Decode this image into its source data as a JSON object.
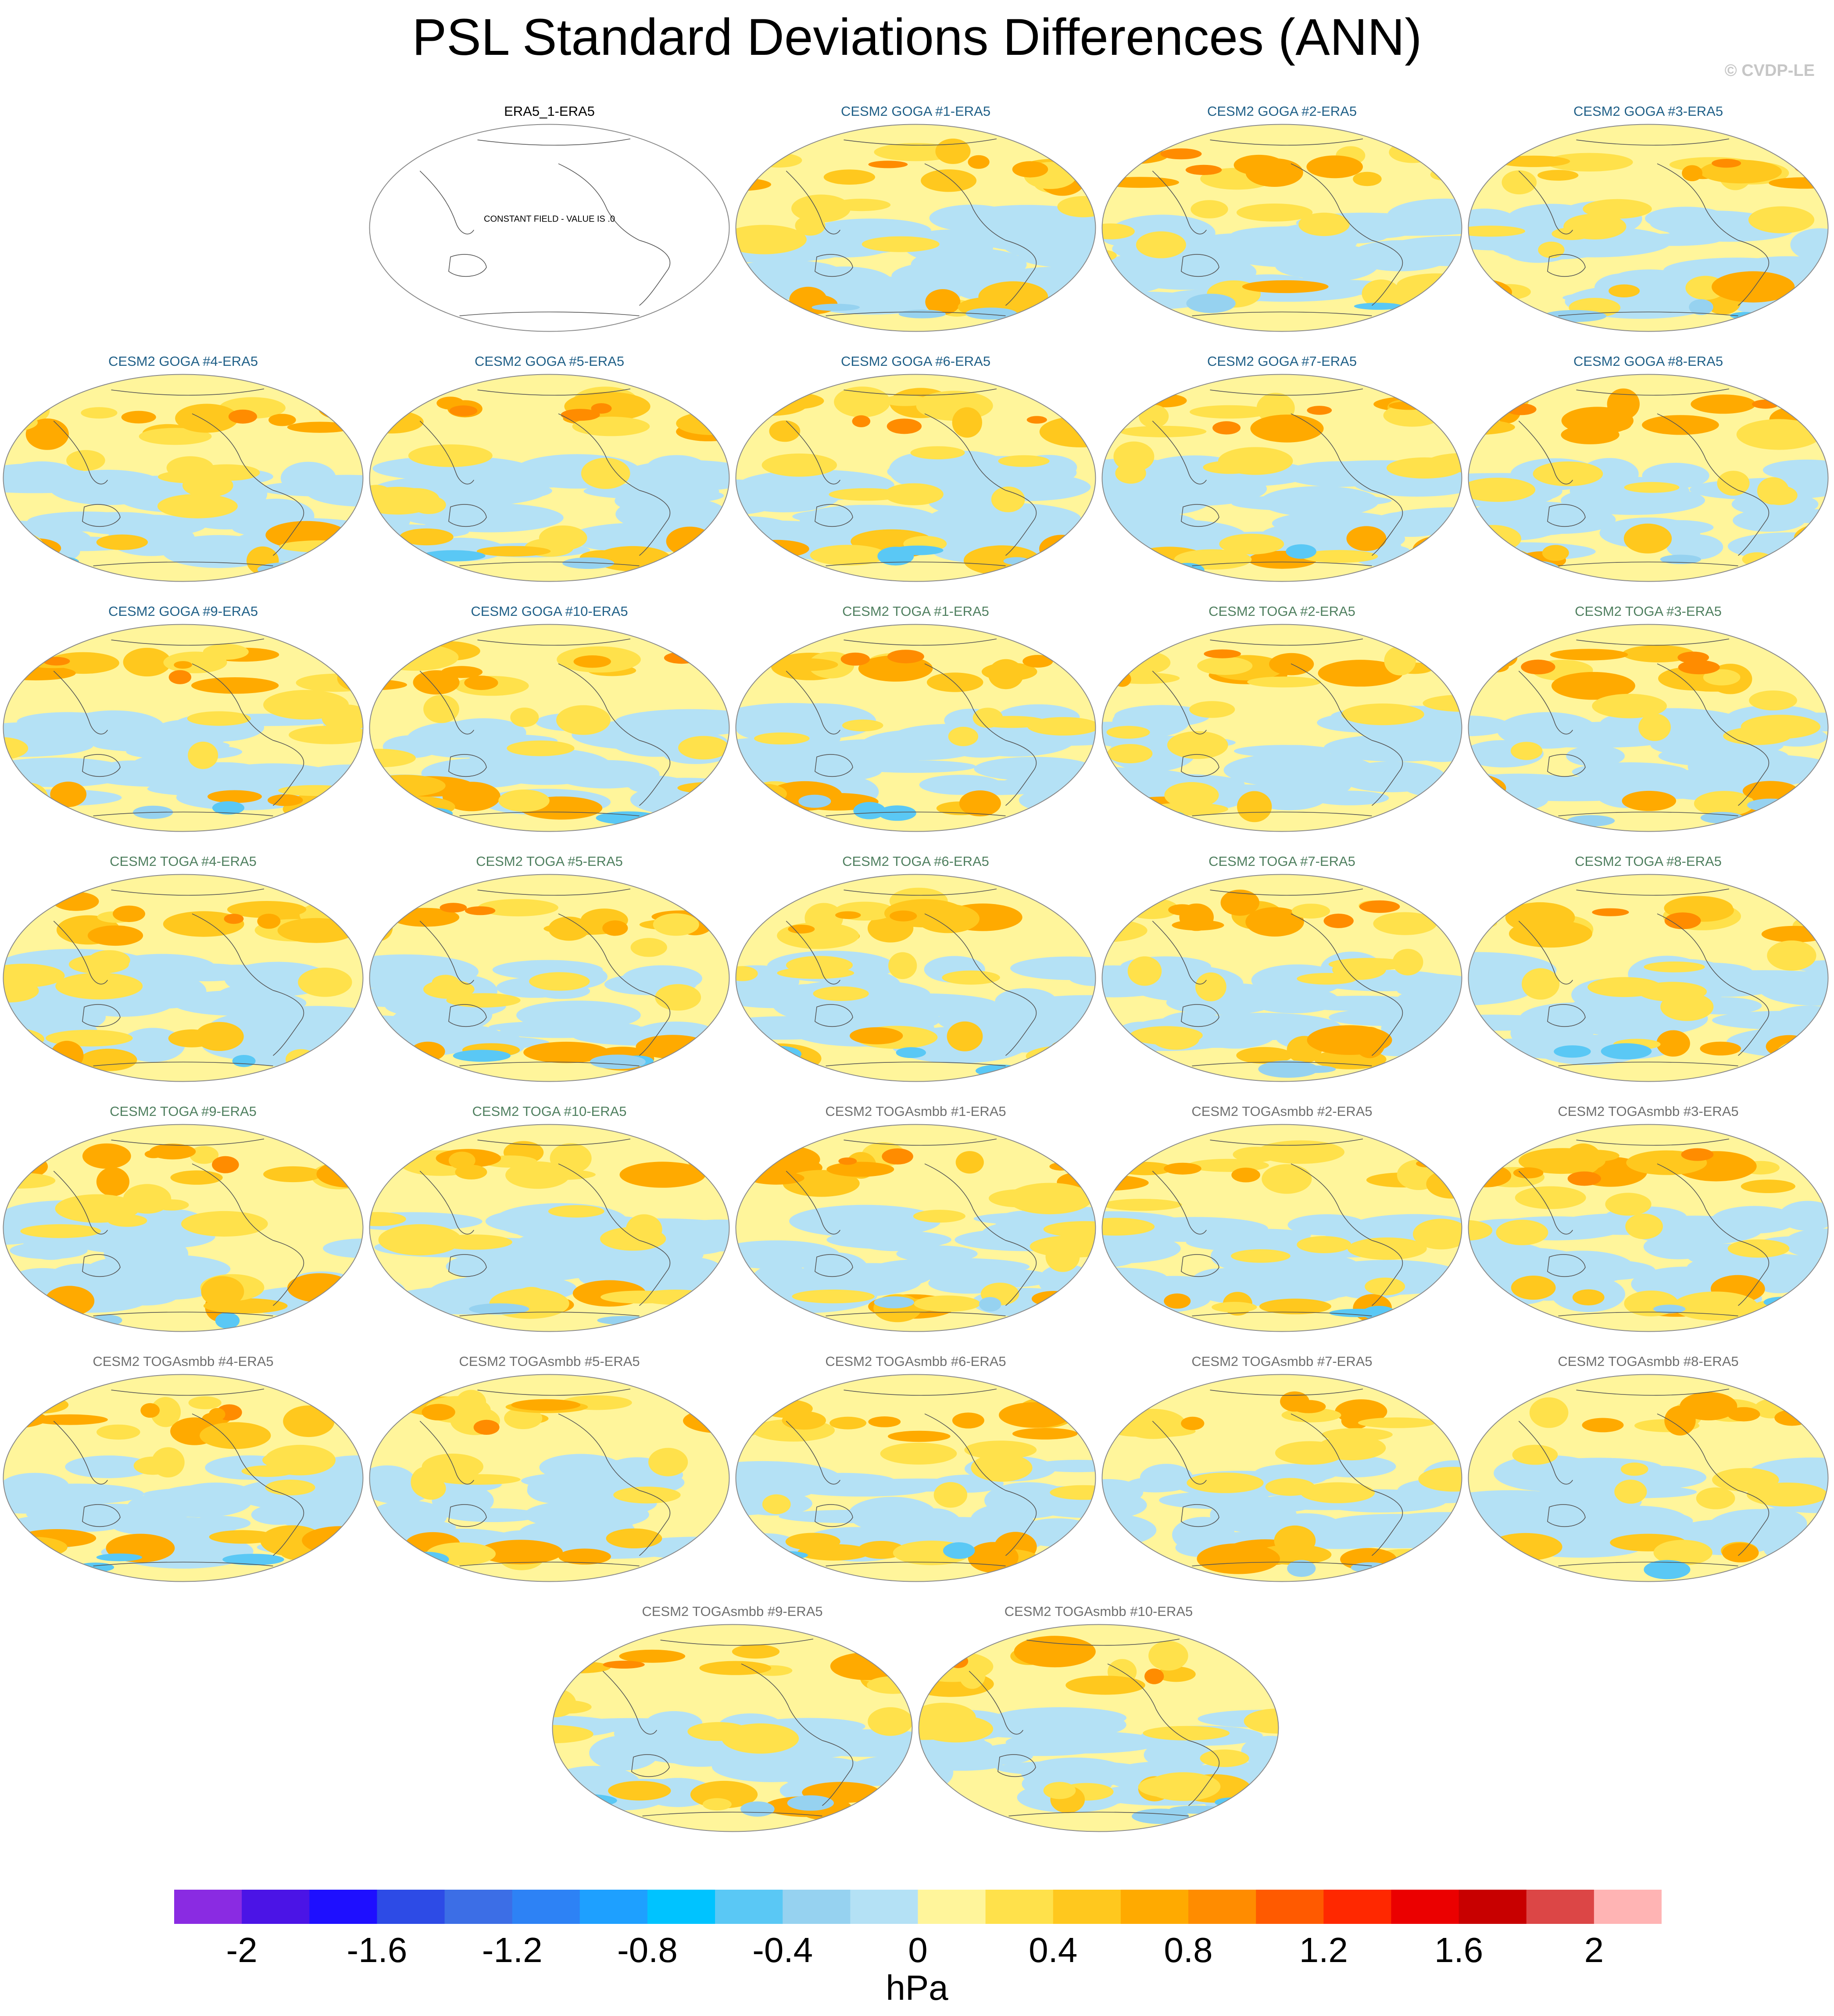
{
  "title": "PSL Standard Deviations Differences (ANN)",
  "watermark": "© CVDP-LE",
  "colors": {
    "goga_title": "#1f5f87",
    "toga_title": "#4f7f5f",
    "togasmbb_title": "#6f6f6f",
    "obs_title": "#000000",
    "coastline": "#555555",
    "outline": "#8a8a8a"
  },
  "chart_data": {
    "type": "heatmap",
    "projection": "Robinson (global, centered on Pacific)",
    "variable": "PSL",
    "season": "ANN",
    "units": "hPa",
    "colorbar": {
      "label": "hPa",
      "levels": [
        -2.2,
        -2,
        -1.8,
        -1.6,
        -1.4,
        -1.2,
        -1,
        -0.8,
        -0.6,
        -0.4,
        -0.2,
        0,
        0.2,
        0.4,
        0.6,
        0.8,
        1,
        1.2,
        1.4,
        1.6,
        1.8,
        2,
        2.2
      ],
      "tick_labels": [
        "-2",
        "-1.6",
        "-1.2",
        "-0.8",
        "-0.4",
        "0",
        "0.4",
        "0.8",
        "1.2",
        "1.6",
        "2"
      ],
      "tick_values": [
        -2,
        -1.6,
        -1.2,
        -0.8,
        -0.4,
        0,
        0.4,
        0.8,
        1.2,
        1.6,
        2
      ],
      "colors": [
        "#8a2be2",
        "#4b14e6",
        "#1e0fff",
        "#2d4be6",
        "#3c6ee6",
        "#2d82f5",
        "#1ea0ff",
        "#00c3ff",
        "#5ac8f5",
        "#96d2f0",
        "#b4e1f5",
        "#fff59b",
        "#ffe14b",
        "#ffc81e",
        "#ffaa00",
        "#ff8c00",
        "#ff5a00",
        "#ff2800",
        "#eb0000",
        "#c80000",
        "#dc4646",
        "#ffb4b4"
      ]
    },
    "panels": [
      {
        "title": "ERA5_1-ERA5",
        "group": "obs",
        "note": "CONSTANT FIELD - VALUE IS .0"
      },
      {
        "title": "CESM2 GOGA #1-ERA5",
        "group": "goga"
      },
      {
        "title": "CESM2 GOGA #2-ERA5",
        "group": "goga"
      },
      {
        "title": "CESM2 GOGA #3-ERA5",
        "group": "goga"
      },
      {
        "title": "CESM2 GOGA #4-ERA5",
        "group": "goga"
      },
      {
        "title": "CESM2 GOGA #5-ERA5",
        "group": "goga"
      },
      {
        "title": "CESM2 GOGA #6-ERA5",
        "group": "goga"
      },
      {
        "title": "CESM2 GOGA #7-ERA5",
        "group": "goga"
      },
      {
        "title": "CESM2 GOGA #8-ERA5",
        "group": "goga"
      },
      {
        "title": "CESM2 GOGA #9-ERA5",
        "group": "goga"
      },
      {
        "title": "CESM2 GOGA #10-ERA5",
        "group": "goga"
      },
      {
        "title": "CESM2 TOGA #1-ERA5",
        "group": "toga"
      },
      {
        "title": "CESM2 TOGA #2-ERA5",
        "group": "toga"
      },
      {
        "title": "CESM2 TOGA #3-ERA5",
        "group": "toga"
      },
      {
        "title": "CESM2 TOGA #4-ERA5",
        "group": "toga"
      },
      {
        "title": "CESM2 TOGA #5-ERA5",
        "group": "toga"
      },
      {
        "title": "CESM2 TOGA #6-ERA5",
        "group": "toga"
      },
      {
        "title": "CESM2 TOGA #7-ERA5",
        "group": "toga"
      },
      {
        "title": "CESM2 TOGA #8-ERA5",
        "group": "toga"
      },
      {
        "title": "CESM2 TOGA #9-ERA5",
        "group": "toga"
      },
      {
        "title": "CESM2 TOGA #10-ERA5",
        "group": "toga"
      },
      {
        "title": "CESM2 TOGAsmbb #1-ERA5",
        "group": "togasmbb"
      },
      {
        "title": "CESM2 TOGAsmbb #2-ERA5",
        "group": "togasmbb"
      },
      {
        "title": "CESM2 TOGAsmbb #3-ERA5",
        "group": "togasmbb"
      },
      {
        "title": "CESM2 TOGAsmbb #4-ERA5",
        "group": "togasmbb"
      },
      {
        "title": "CESM2 TOGAsmbb #5-ERA5",
        "group": "togasmbb"
      },
      {
        "title": "CESM2 TOGAsmbb #6-ERA5",
        "group": "togasmbb"
      },
      {
        "title": "CESM2 TOGAsmbb #7-ERA5",
        "group": "togasmbb"
      },
      {
        "title": "CESM2 TOGAsmbb #8-ERA5",
        "group": "togasmbb"
      },
      {
        "title": "CESM2 TOGAsmbb #9-ERA5",
        "group": "togasmbb"
      },
      {
        "title": "CESM2 TOGAsmbb #10-ERA5",
        "group": "togasmbb"
      }
    ]
  }
}
